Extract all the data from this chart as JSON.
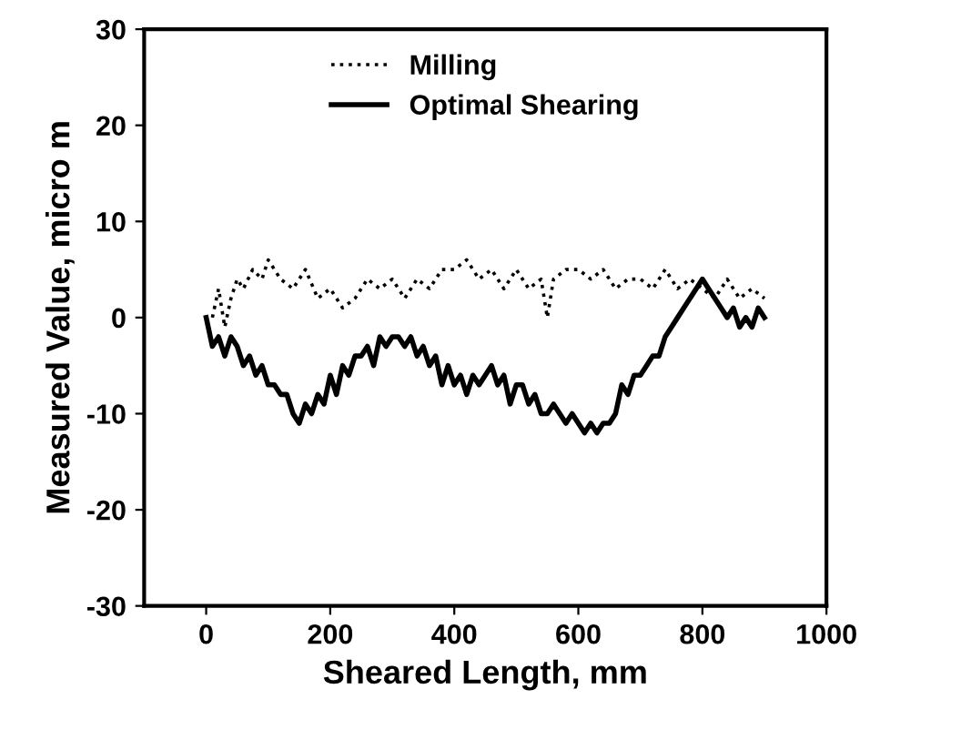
{
  "chart_data": {
    "type": "line",
    "xlabel": "Sheared Length, mm",
    "ylabel": "Measured Value, micro m",
    "xlim": [
      -100,
      1000
    ],
    "ylim": [
      -30,
      30
    ],
    "xticks": [
      0,
      200,
      400,
      600,
      800,
      1000
    ],
    "yticks": [
      -30,
      -20,
      -10,
      0,
      10,
      20,
      30
    ],
    "legend": "top",
    "grid": false,
    "series": [
      {
        "name": "Milling",
        "color": "#000000",
        "line_style": "dotted",
        "x": [
          10,
          20,
          30,
          40,
          50,
          60,
          75,
          90,
          100,
          120,
          140,
          160,
          180,
          200,
          220,
          240,
          260,
          280,
          300,
          320,
          340,
          360,
          380,
          400,
          420,
          440,
          460,
          480,
          500,
          520,
          540,
          550,
          560,
          580,
          600,
          620,
          640,
          660,
          680,
          700,
          720,
          740,
          760,
          780,
          800,
          820,
          840,
          860,
          880,
          900
        ],
        "values": [
          0,
          3,
          -1,
          2,
          4,
          3,
          5,
          4,
          6,
          4,
          3,
          5,
          2,
          3,
          1,
          2,
          4,
          3,
          4,
          2,
          4,
          3,
          5,
          5,
          6,
          4,
          5,
          3,
          5,
          3,
          4,
          0,
          4,
          5,
          5,
          4,
          5,
          3,
          4,
          4,
          3,
          5,
          3,
          4,
          3,
          2,
          4,
          2,
          3,
          2
        ]
      },
      {
        "name": "Optimal Shearing",
        "color": "#000000",
        "line_style": "solid",
        "x": [
          0,
          10,
          20,
          30,
          40,
          50,
          60,
          70,
          80,
          90,
          100,
          110,
          120,
          130,
          140,
          150,
          160,
          170,
          180,
          190,
          200,
          210,
          220,
          230,
          240,
          250,
          260,
          270,
          280,
          290,
          300,
          310,
          320,
          330,
          340,
          350,
          360,
          370,
          380,
          390,
          400,
          410,
          420,
          430,
          440,
          450,
          460,
          470,
          480,
          490,
          500,
          510,
          520,
          530,
          540,
          550,
          560,
          570,
          580,
          590,
          600,
          610,
          620,
          630,
          640,
          650,
          660,
          670,
          680,
          690,
          700,
          710,
          720,
          730,
          740,
          750,
          760,
          770,
          780,
          790,
          800,
          810,
          820,
          830,
          840,
          850,
          860,
          870,
          880,
          890,
          900
        ],
        "values": [
          0,
          -3,
          -2,
          -4,
          -2,
          -3,
          -5,
          -4,
          -6,
          -5,
          -7,
          -7,
          -8,
          -8,
          -10,
          -11,
          -9,
          -10,
          -8,
          -9,
          -6,
          -8,
          -5,
          -6,
          -4,
          -4,
          -3,
          -5,
          -2,
          -3,
          -2,
          -2,
          -3,
          -2,
          -4,
          -3,
          -5,
          -4,
          -7,
          -5,
          -7,
          -6,
          -8,
          -6,
          -7,
          -6,
          -5,
          -7,
          -6,
          -9,
          -7,
          -7,
          -9,
          -8,
          -10,
          -10,
          -9,
          -10,
          -11,
          -10,
          -11,
          -12,
          -11,
          -12,
          -11,
          -11,
          -10,
          -7,
          -8,
          -6,
          -6,
          -5,
          -4,
          -4,
          -2,
          -1,
          0,
          1,
          2,
          3,
          4,
          3,
          2,
          1,
          0,
          1,
          -1,
          0,
          -1,
          1,
          0
        ]
      }
    ]
  }
}
